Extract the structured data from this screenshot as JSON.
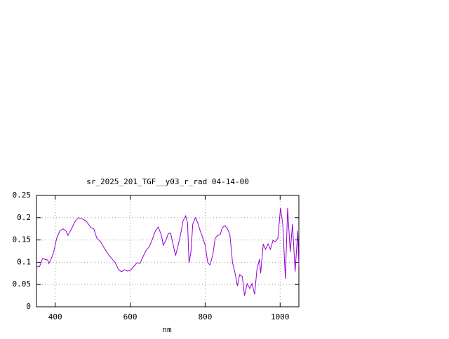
{
  "chart_data": {
    "type": "line",
    "title": "sr_2025_201_TGF__y03_r_rad 04-14-00",
    "x_label": "nm",
    "xlim": [
      350,
      1050
    ],
    "xticks": [
      400,
      600,
      800,
      1000
    ],
    "ylim": [
      0,
      0.25
    ],
    "yticks": [
      0,
      0.05,
      0.1,
      0.15,
      0.2,
      0.25
    ],
    "grid": true,
    "series": [
      {
        "color": "#9400d3",
        "x": [
          350,
          358,
          366,
          380,
          383,
          389,
          396,
          404,
          412,
          421,
          429,
          434,
          442,
          454,
          462,
          473,
          483,
          495,
          503,
          511,
          521,
          532,
          544,
          552,
          560,
          569,
          577,
          585,
          593,
          601,
          610,
          618,
          626,
          634,
          642,
          651,
          659,
          667,
          675,
          684,
          688,
          695,
          702,
          708,
          715,
          721,
          728,
          735,
          741,
          748,
          753,
          757,
          762,
          767,
          774,
          780,
          787,
          794,
          800,
          807,
          813,
          820,
          827,
          833,
          840,
          846,
          853,
          859,
          866,
          873,
          879,
          886,
          892,
          899,
          905,
          912,
          919,
          925,
          932,
          938,
          945,
          948,
          955,
          961,
          968,
          974,
          981,
          988,
          994,
          1001,
          1007,
          1014,
          1020,
          1027,
          1033,
          1040,
          1047,
          1050
        ],
        "values": [
          0.09,
          0.09,
          0.108,
          0.105,
          0.097,
          0.107,
          0.123,
          0.154,
          0.17,
          0.175,
          0.17,
          0.16,
          0.173,
          0.193,
          0.2,
          0.197,
          0.192,
          0.178,
          0.175,
          0.154,
          0.146,
          0.13,
          0.115,
          0.107,
          0.099,
          0.083,
          0.079,
          0.083,
          0.08,
          0.082,
          0.091,
          0.099,
          0.097,
          0.112,
          0.126,
          0.135,
          0.151,
          0.17,
          0.179,
          0.159,
          0.138,
          0.149,
          0.165,
          0.165,
          0.138,
          0.115,
          0.138,
          0.165,
          0.193,
          0.204,
          0.189,
          0.099,
          0.123,
          0.186,
          0.2,
          0.189,
          0.17,
          0.154,
          0.138,
          0.099,
          0.094,
          0.115,
          0.154,
          0.16,
          0.162,
          0.178,
          0.182,
          0.176,
          0.162,
          0.099,
          0.079,
          0.047,
          0.072,
          0.068,
          0.025,
          0.052,
          0.041,
          0.052,
          0.028,
          0.083,
          0.107,
          0.075,
          0.141,
          0.129,
          0.141,
          0.129,
          0.149,
          0.146,
          0.154,
          0.222,
          0.186,
          0.063,
          0.222,
          0.123,
          0.186,
          0.079,
          0.17,
          0.091
        ]
      }
    ]
  }
}
